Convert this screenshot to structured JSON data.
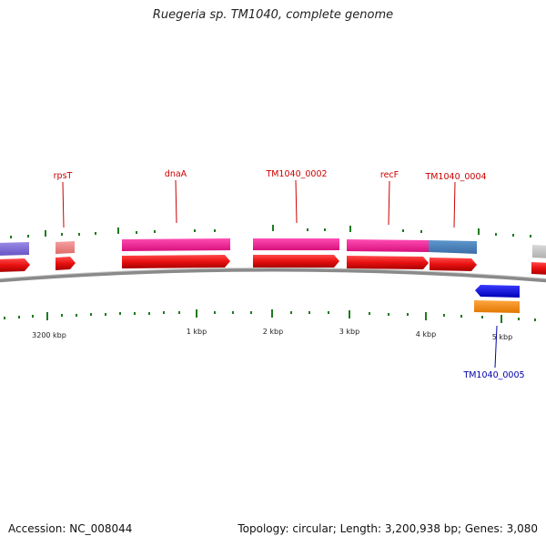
{
  "title": "Ruegeria sp. TM1040, complete genome",
  "footer": {
    "accession": "Accession: NC_008044",
    "summary": "Topology: circular; Length: 3,200,938 bp; Genes: 3,080"
  },
  "colors": {
    "backbone": "#8a8a8a",
    "tick": "#1e7a1e",
    "forward_cds": "#e81010",
    "reverse_cds": "#1a1ad8",
    "forward_label": "#cc0000",
    "reverse_label": "#0000aa"
  },
  "gene_labels": [
    {
      "text": "rpsT",
      "strand": "forward"
    },
    {
      "text": "dnaA",
      "strand": "forward"
    },
    {
      "text": "TM1040_0002",
      "strand": "forward"
    },
    {
      "text": "recF",
      "strand": "forward"
    },
    {
      "text": "TM1040_0004",
      "strand": "forward"
    },
    {
      "text": "TM1040_0005",
      "strand": "reverse"
    }
  ],
  "tick_labels": [
    "3200 kbp",
    "1 kbp",
    "2 kbp",
    "3 kbp",
    "4 kbp",
    "5 kbp"
  ]
}
